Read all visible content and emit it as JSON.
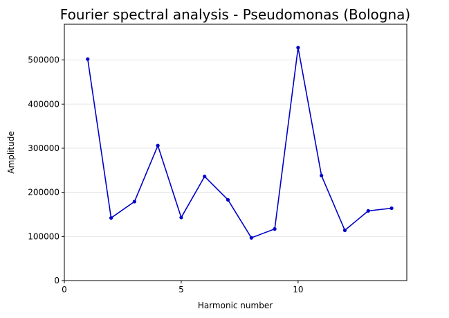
{
  "chart_data": {
    "type": "line",
    "title": "Fourier spectral analysis - Pseudomonas (Bologna)",
    "xlabel": "Harmonic number",
    "ylabel": "Amplitude",
    "xlim": [
      0,
      14.65
    ],
    "ylim": [
      0,
      581000
    ],
    "xticks": [
      0,
      5,
      10
    ],
    "yticks": [
      0,
      100000,
      200000,
      300000,
      400000,
      500000
    ],
    "grid": "horizontal",
    "legend": "none",
    "series": [
      {
        "color": "#0000c8",
        "marker": "circle",
        "x": [
          1,
          2,
          3,
          4,
          5,
          6,
          7,
          8,
          9,
          10,
          11,
          12,
          13,
          14
        ],
        "y": [
          502000,
          142000,
          179000,
          306000,
          143000,
          236000,
          183000,
          97000,
          117000,
          528000,
          238000,
          114000,
          158000,
          164000
        ]
      }
    ]
  }
}
